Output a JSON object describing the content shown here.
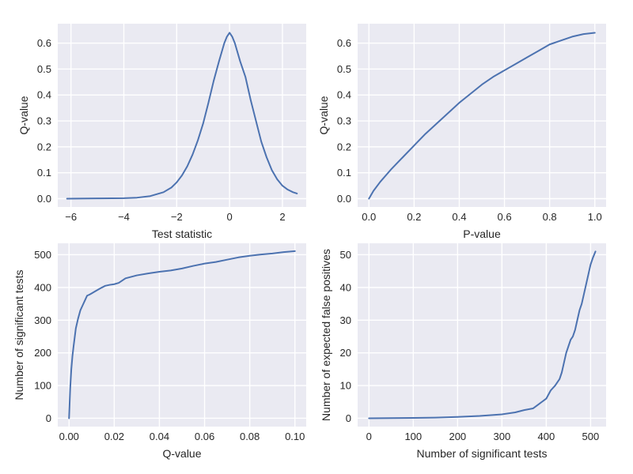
{
  "figure": {
    "background_color": "#ffffff",
    "plot_bg": "#eaeaf2",
    "grid_color": "#ffffff",
    "line_color": "#4c72b0",
    "text_color": "#262626"
  },
  "chart_data": [
    {
      "id": "tl",
      "type": "line",
      "xlabel": "Test statistic",
      "ylabel": "Q-value",
      "xlim": [
        -6.5,
        2.9
      ],
      "ylim": [
        -0.032,
        0.675
      ],
      "xticks": [
        -6,
        -4,
        -2,
        0,
        2
      ],
      "xtick_labels": [
        "−6",
        "−4",
        "−2",
        "0",
        "2"
      ],
      "yticks": [
        0.0,
        0.1,
        0.2,
        0.3,
        0.4,
        0.5,
        0.6
      ],
      "ytick_labels": [
        "0.0",
        "0.1",
        "0.2",
        "0.3",
        "0.4",
        "0.5",
        "0.6"
      ],
      "grid": true,
      "series": [
        {
          "x": [
            -6.15,
            -5.0,
            -4.0,
            -3.5,
            -3.0,
            -2.5,
            -2.2,
            -2.0,
            -1.8,
            -1.6,
            -1.4,
            -1.2,
            -1.0,
            -0.8,
            -0.6,
            -0.4,
            -0.2,
            -0.1,
            0.0,
            0.1,
            0.2,
            0.4,
            0.6,
            0.8,
            1.0,
            1.2,
            1.4,
            1.6,
            1.8,
            2.0,
            2.2,
            2.4,
            2.55
          ],
          "y": [
            0.0,
            0.001,
            0.002,
            0.004,
            0.01,
            0.025,
            0.043,
            0.063,
            0.09,
            0.125,
            0.17,
            0.225,
            0.29,
            0.37,
            0.455,
            0.53,
            0.6,
            0.625,
            0.64,
            0.625,
            0.6,
            0.53,
            0.47,
            0.38,
            0.3,
            0.22,
            0.16,
            0.11,
            0.075,
            0.05,
            0.035,
            0.025,
            0.02
          ]
        }
      ]
    },
    {
      "id": "tr",
      "type": "line",
      "xlabel": "P-value",
      "ylabel": "Q-value",
      "xlim": [
        -0.05,
        1.05
      ],
      "ylim": [
        -0.032,
        0.675
      ],
      "xticks": [
        0.0,
        0.2,
        0.4,
        0.6,
        0.8,
        1.0
      ],
      "xtick_labels": [
        "0.0",
        "0.2",
        "0.4",
        "0.6",
        "0.8",
        "1.0"
      ],
      "yticks": [
        0.0,
        0.1,
        0.2,
        0.3,
        0.4,
        0.5,
        0.6
      ],
      "ytick_labels": [
        "0.0",
        "0.1",
        "0.2",
        "0.3",
        "0.4",
        "0.5",
        "0.6"
      ],
      "grid": true,
      "series": [
        {
          "x": [
            0.0,
            0.02,
            0.05,
            0.1,
            0.15,
            0.2,
            0.25,
            0.3,
            0.35,
            0.4,
            0.45,
            0.5,
            0.55,
            0.6,
            0.65,
            0.7,
            0.75,
            0.8,
            0.85,
            0.9,
            0.95,
            1.0
          ],
          "y": [
            0.0,
            0.03,
            0.065,
            0.115,
            0.16,
            0.205,
            0.25,
            0.29,
            0.33,
            0.37,
            0.405,
            0.44,
            0.47,
            0.495,
            0.52,
            0.545,
            0.57,
            0.595,
            0.61,
            0.625,
            0.635,
            0.64
          ]
        }
      ]
    },
    {
      "id": "bl",
      "type": "line",
      "xlabel": "Q-value",
      "ylabel": "Number of significant tests",
      "xlim": [
        -0.005,
        0.105
      ],
      "ylim": [
        -25.5,
        535
      ],
      "xticks": [
        0.0,
        0.02,
        0.04,
        0.06,
        0.08,
        0.1
      ],
      "xtick_labels": [
        "0.00",
        "0.02",
        "0.04",
        "0.06",
        "0.08",
        "0.10"
      ],
      "yticks": [
        0,
        100,
        200,
        300,
        400,
        500
      ],
      "ytick_labels": [
        "0",
        "100",
        "200",
        "300",
        "400",
        "500"
      ],
      "grid": true,
      "series": [
        {
          "x": [
            0.0,
            0.0005,
            0.001,
            0.0015,
            0.002,
            0.003,
            0.004,
            0.005,
            0.006,
            0.007,
            0.008,
            0.009,
            0.01,
            0.012,
            0.014,
            0.016,
            0.018,
            0.02,
            0.022,
            0.025,
            0.03,
            0.035,
            0.04,
            0.045,
            0.05,
            0.055,
            0.06,
            0.065,
            0.07,
            0.075,
            0.08,
            0.085,
            0.09,
            0.095,
            0.1
          ],
          "y": [
            0,
            90,
            150,
            190,
            220,
            275,
            305,
            330,
            345,
            360,
            375,
            378,
            382,
            390,
            398,
            405,
            408,
            410,
            414,
            428,
            437,
            443,
            448,
            452,
            458,
            466,
            473,
            478,
            485,
            492,
            497,
            501,
            504,
            508,
            511
          ]
        }
      ]
    },
    {
      "id": "br",
      "type": "line",
      "xlabel": "Number of significant tests",
      "ylabel": "Number of expected false positives",
      "xlim": [
        -25.5,
        535
      ],
      "ylim": [
        -2.55,
        53.5
      ],
      "xticks": [
        0,
        100,
        200,
        300,
        400,
        500
      ],
      "xtick_labels": [
        "0",
        "100",
        "200",
        "300",
        "400",
        "500"
      ],
      "yticks": [
        0,
        10,
        20,
        30,
        40,
        50
      ],
      "ytick_labels": [
        "0",
        "10",
        "20",
        "30",
        "40",
        "50"
      ],
      "grid": true,
      "series": [
        {
          "x": [
            0,
            100,
            150,
            200,
            250,
            300,
            330,
            350,
            370,
            380,
            390,
            400,
            410,
            420,
            430,
            435,
            440,
            445,
            450,
            455,
            460,
            465,
            470,
            475,
            480,
            485,
            490,
            495,
            500,
            505,
            511
          ],
          "y": [
            0,
            0.1,
            0.2,
            0.4,
            0.7,
            1.2,
            1.8,
            2.5,
            3.0,
            4.0,
            5.0,
            6.0,
            8.5,
            10.0,
            12.0,
            14.0,
            17.0,
            20.0,
            22.0,
            24.0,
            25.0,
            27.0,
            30.0,
            33.0,
            35.0,
            38.0,
            41.0,
            44.0,
            47.0,
            49.0,
            51.0
          ]
        }
      ]
    }
  ]
}
